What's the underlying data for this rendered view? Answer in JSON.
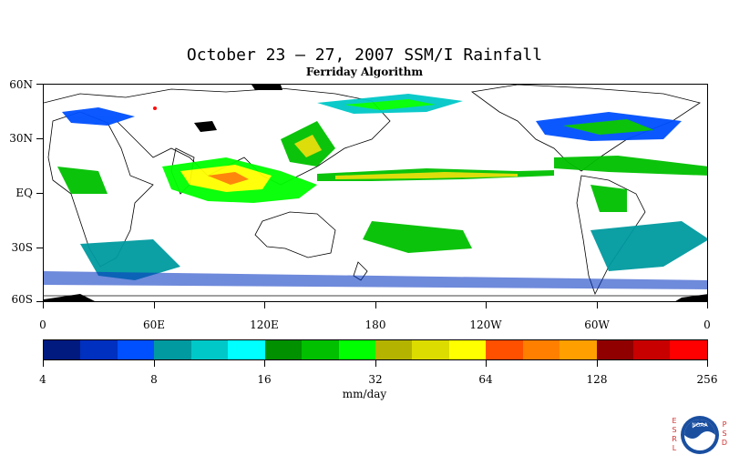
{
  "title": "October 23 – 27, 2007 SSM/I Rainfall",
  "subtitle": "Ferriday Algorithm",
  "lat_labels": [
    "60N",
    "30N",
    "EQ",
    "30S",
    "60S"
  ],
  "lon_labels": [
    "0",
    "60E",
    "120E",
    "180",
    "120W",
    "60W",
    "0"
  ],
  "colorbar": {
    "colors": [
      "#001a80",
      "#0030c0",
      "#0050ff",
      "#009aa0",
      "#00c8c8",
      "#00ffff",
      "#009000",
      "#00c000",
      "#00ff00",
      "#b4b400",
      "#dcdc00",
      "#ffff00",
      "#ff5000",
      "#ff8000",
      "#ffa000",
      "#900000",
      "#c80000",
      "#ff0000"
    ],
    "tick_labels": [
      "4",
      "8",
      "16",
      "32",
      "64",
      "128",
      "256"
    ]
  },
  "units": "mm/day",
  "logo": {
    "left_letters": [
      "E",
      "S",
      "R",
      "L"
    ],
    "right_letters": [
      "P",
      "S",
      "D"
    ],
    "name": "NOAA"
  }
}
